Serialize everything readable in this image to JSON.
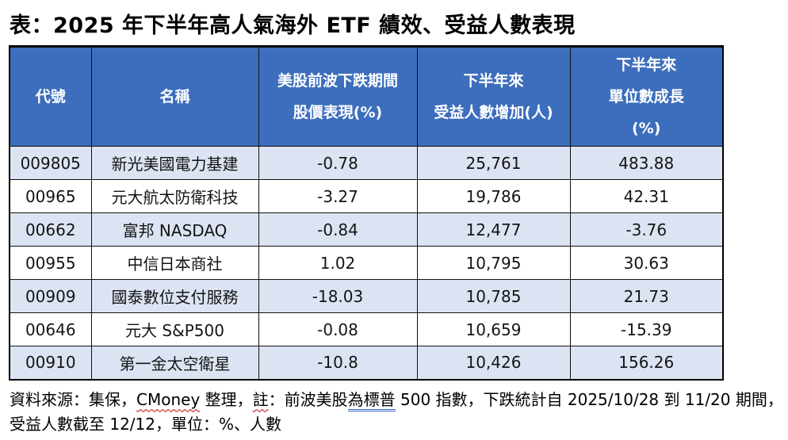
{
  "title": "表：2025 年下半年高人氣海外 ETF 績效、受益人數表現",
  "colors": {
    "header_bg": "#3D6EBD",
    "header_text": "#FFFFFF",
    "row_alt_bg": "#DCE4F3",
    "row_plain_bg": "#FFFFFF",
    "negative_value": "#D8322D",
    "border": "#000000"
  },
  "table": {
    "headers": [
      {
        "lines": [
          "代號"
        ]
      },
      {
        "lines": [
          "名稱"
        ]
      },
      {
        "lines": [
          "美股前波下跌期間",
          "股價表現(%)"
        ]
      },
      {
        "lines": [
          "下半年來",
          "受益人數增加(人)"
        ]
      },
      {
        "lines": [
          "下半年來",
          "單位數成長",
          "(%)"
        ]
      }
    ],
    "rows": [
      {
        "code": "009805",
        "name": "新光美國電力基建",
        "price_perf": "-0.78",
        "holders_increase": "25,761",
        "unit_growth": "483.88",
        "unit_growth_negative": false
      },
      {
        "code": "00965",
        "name": "元大航太防衛科技",
        "price_perf": "-3.27",
        "holders_increase": "19,786",
        "unit_growth": "42.31",
        "unit_growth_negative": false
      },
      {
        "code": "00662",
        "name": "富邦 NASDAQ",
        "price_perf": "-0.84",
        "holders_increase": "12,477",
        "unit_growth": "-3.76",
        "unit_growth_negative": true
      },
      {
        "code": "00955",
        "name": "中信日本商社",
        "price_perf": "1.02",
        "holders_increase": "10,795",
        "unit_growth": "30.63",
        "unit_growth_negative": false
      },
      {
        "code": "00909",
        "name": "國泰數位支付服務",
        "price_perf": "-18.03",
        "holders_increase": "10,785",
        "unit_growth": "21.73",
        "unit_growth_negative": false
      },
      {
        "code": "00646",
        "name": "元大 S&P500",
        "price_perf": "-0.08",
        "holders_increase": "10,659",
        "unit_growth": "-15.39",
        "unit_growth_negative": true
      },
      {
        "code": "00910",
        "name": "第一金太空衛星",
        "price_perf": "-10.8",
        "holders_increase": "10,426",
        "unit_growth": "156.26",
        "unit_growth_negative": false
      }
    ]
  },
  "footer": {
    "line1_segments": [
      {
        "text": "資料來源：集保，",
        "mark": "none"
      },
      {
        "text": "CMoney",
        "mark": "red-squiggle"
      },
      {
        "text": " 整理，",
        "mark": "none"
      },
      {
        "text": "註",
        "mark": "red-squiggle"
      },
      {
        "text": "：前波美股",
        "mark": "none"
      },
      {
        "text": "為標普",
        "mark": "blue-squiggle"
      },
      {
        "text": " 500 指數，下跌統計自 2025/10/28 到 11/20 期間，",
        "mark": "none"
      }
    ],
    "line2": "受益人數截至 12/12，單位：%、人數"
  }
}
